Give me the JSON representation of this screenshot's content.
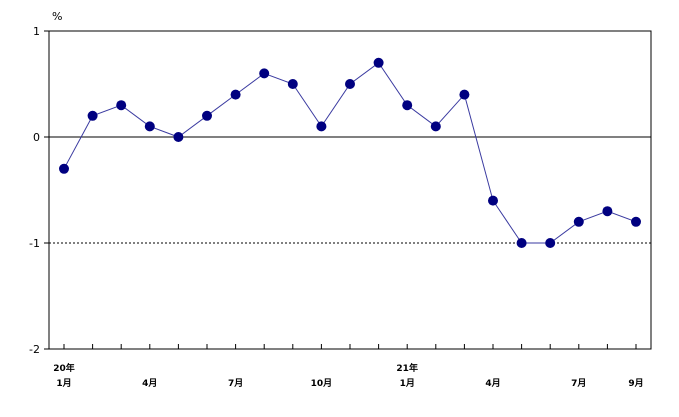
{
  "chart_data": {
    "type": "line",
    "unit": "%",
    "ylim": [
      -2,
      1
    ],
    "yticks": [
      "1",
      "0",
      "-1",
      "-2"
    ],
    "ytick_values": [
      1,
      0,
      -1,
      -2
    ],
    "reference_lines": [
      {
        "y": 0,
        "style": "solid"
      },
      {
        "y": -1,
        "style": "dashed"
      }
    ],
    "x_labels": [
      {
        "index": 0,
        "label": "1月",
        "year": "20年"
      },
      {
        "index": 3,
        "label": "4月"
      },
      {
        "index": 6,
        "label": "7月"
      },
      {
        "index": 9,
        "label": "10月"
      },
      {
        "index": 12,
        "label": "1月",
        "year": "21年"
      },
      {
        "index": 15,
        "label": "4月"
      },
      {
        "index": 18,
        "label": "7月"
      },
      {
        "index": 20,
        "label": "9月"
      }
    ],
    "x": [
      "20年1月",
      "20年2月",
      "20年3月",
      "20年4月",
      "20年5月",
      "20年6月",
      "20年7月",
      "20年8月",
      "20年9月",
      "20年10月",
      "20年11月",
      "20年12月",
      "21年1月",
      "21年2月",
      "21年3月",
      "21年4月",
      "21年5月",
      "21年6月",
      "21年7月",
      "21年8月",
      "21年9月"
    ],
    "series": [
      {
        "values": [
          -0.3,
          0.2,
          0.3,
          0.1,
          0.0,
          0.2,
          0.4,
          0.6,
          0.5,
          0.1,
          0.5,
          0.7,
          0.3,
          0.1,
          0.4,
          -0.6,
          -1.0,
          -1.0,
          -0.8,
          -0.7,
          -0.8
        ],
        "color": "#000080",
        "line_color": "#3a3aa0"
      }
    ],
    "grid": false,
    "legend": "none"
  }
}
